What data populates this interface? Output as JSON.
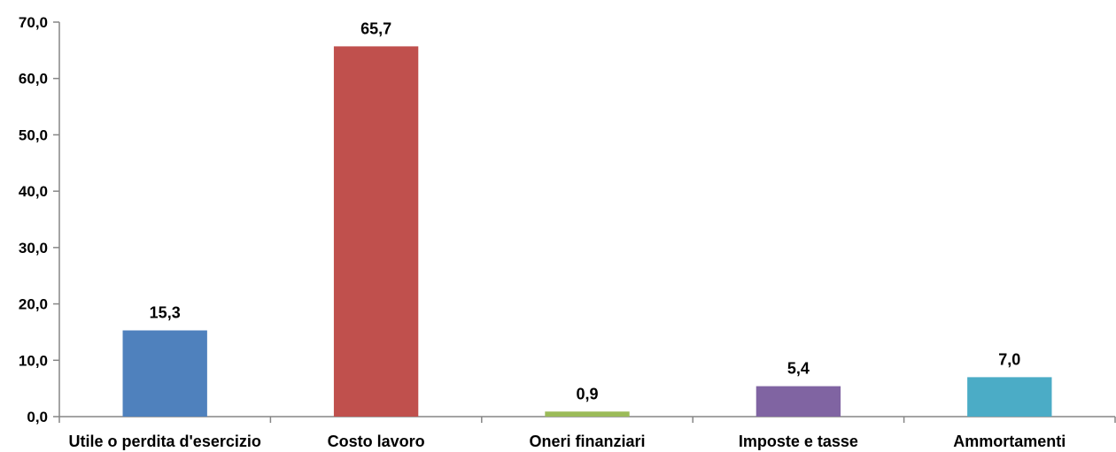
{
  "chart_data": {
    "type": "bar",
    "title": "",
    "xlabel": "",
    "ylabel": "",
    "categories": [
      "Utile o perdita d'esercizio",
      "Costo lavoro",
      "Oneri finanziari",
      "Imposte e tasse",
      "Ammortamenti"
    ],
    "values": [
      15.3,
      65.7,
      0.9,
      5.4,
      7.0
    ],
    "value_labels": [
      "15,3",
      "65,7",
      "0,9",
      "5,4",
      "7,0"
    ],
    "colors": [
      "#4F81BD",
      "#C0504D",
      "#9BBB59",
      "#8064A2",
      "#4BACC6"
    ],
    "ylim": [
      0,
      70
    ],
    "yticks": [
      0,
      10,
      20,
      30,
      40,
      50,
      60,
      70
    ],
    "ytick_labels": [
      "0,0",
      "10,0",
      "20,0",
      "30,0",
      "40,0",
      "50,0",
      "60,0",
      "70,0"
    ],
    "grid": false,
    "legend": "none"
  }
}
